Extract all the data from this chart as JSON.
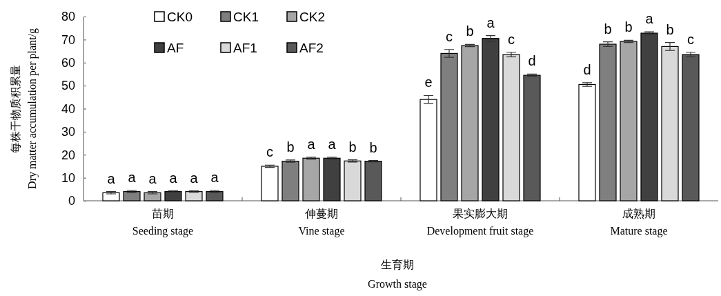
{
  "chart_data": {
    "type": "bar",
    "xlabel": "生育期\nGrowth stage",
    "ylabel": "每株干物质积累量\nDry matter accumulation per plant/g",
    "categories": [
      "苗期\nSeeding stage",
      "伸蔓期\nVine stage",
      "果实膨大期\nDevelopment fruit stage",
      "成熟期\nMature stage"
    ],
    "series": [
      {
        "name": "CK0",
        "color": "#ffffff",
        "values": [
          3.5,
          15,
          44,
          50.5
        ],
        "errors": [
          0.5,
          0.5,
          1.7,
          0.8
        ],
        "value_labels": [
          "a",
          "c",
          "e",
          "d"
        ]
      },
      {
        "name": "CK1",
        "color": "#7f7f7f",
        "values": [
          4,
          17.2,
          64,
          68
        ],
        "errors": [
          0.5,
          0.5,
          1.7,
          1.0
        ],
        "value_labels": [
          "a",
          "b",
          "c",
          "b"
        ]
      },
      {
        "name": "CK2",
        "color": "#a6a6a6",
        "values": [
          3.5,
          18.5,
          67.4,
          69.2
        ],
        "errors": [
          0.5,
          0.4,
          0.5,
          0.5
        ],
        "value_labels": [
          "a",
          "a",
          "b",
          "b"
        ]
      },
      {
        "name": "AF",
        "color": "#404040",
        "values": [
          4,
          18.5,
          70.5,
          72.8
        ],
        "errors": [
          0.3,
          0.4,
          1.2,
          0.6
        ],
        "value_labels": [
          "a",
          "a",
          "a",
          "a"
        ]
      },
      {
        "name": "AF1",
        "color": "#d9d9d9",
        "values": [
          4,
          17.3,
          63.5,
          67
        ],
        "errors": [
          0.3,
          0.5,
          1.0,
          1.7
        ],
        "value_labels": [
          "a",
          "b",
          "c",
          "b"
        ]
      },
      {
        "name": "AF2",
        "color": "#595959",
        "values": [
          4,
          17.2,
          54.5,
          63.5
        ],
        "errors": [
          0.5,
          0.3,
          0.5,
          1.0
        ],
        "value_labels": [
          "a",
          "b",
          "d",
          "c"
        ]
      }
    ],
    "ylim": [
      0,
      80
    ],
    "yticks": [
      0,
      10,
      20,
      30,
      40,
      50,
      60,
      70,
      80
    ],
    "grid": false,
    "legend": "top left"
  }
}
